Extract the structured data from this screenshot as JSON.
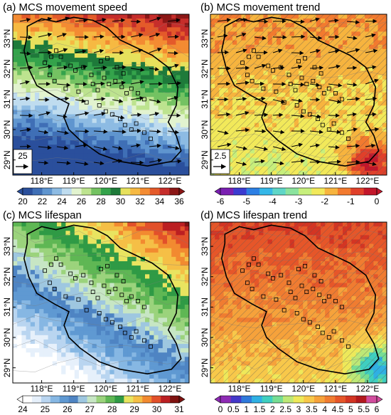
{
  "chart_data": [
    {
      "type": "heatmap",
      "title": "(a) MCS movement speed",
      "x_ticks": [
        "118°E",
        "119°E",
        "120°E",
        "121°E",
        "122°E"
      ],
      "y_ticks": [
        "33°N",
        "32°N",
        "31°N",
        "30°N",
        "29°N"
      ],
      "xlim": [
        117.1,
        122.6
      ],
      "ylim": [
        28.5,
        33.8
      ],
      "colorbar": {
        "labels": [
          "20",
          "22",
          "24",
          "26",
          "28",
          "30",
          "32",
          "34",
          "36"
        ],
        "range": [
          20,
          36
        ]
      },
      "vector_reference": "25",
      "field": {
        "base": 26,
        "lat_gradient": 3.0,
        "ref_lat": 31.0,
        "lon_gradient": 0.6,
        "ref_lon": 120.0
      },
      "vectors": "arrows pointing east",
      "hatching": false
    },
    {
      "type": "heatmap",
      "title": "(b) MCS movement trend",
      "x_ticks": [
        "118°E",
        "119°E",
        "120°E",
        "121°E",
        "122°E"
      ],
      "y_ticks": [
        "33°N",
        "32°N",
        "31°N",
        "30°N",
        "29°N"
      ],
      "xlim": [
        117.1,
        122.6
      ],
      "ylim": [
        28.5,
        33.8
      ],
      "colorbar": {
        "labels": [
          "-6",
          "-5",
          "-4",
          "-3",
          "-2",
          "-1",
          "0"
        ],
        "range": [
          -6,
          0
        ]
      },
      "vector_reference": "2.5",
      "field": {
        "base": -2.0,
        "lat_gradient": 0.2,
        "ref_lat": 31.0,
        "lon_gradient": 0.0,
        "ref_lon": 120.0,
        "hotspot": {
          "lon": 122.1,
          "lat": 28.9,
          "value": -0.3
        }
      },
      "vectors": "arrows pointing east",
      "hatching": true
    },
    {
      "type": "heatmap",
      "title": "(c) MCS lifespan",
      "x_ticks": [
        "118°E",
        "119°E",
        "120°E",
        "121°E",
        "122°E"
      ],
      "y_ticks": [
        "33°N",
        "32°N",
        "31°N",
        "30°N",
        "29°N"
      ],
      "xlim": [
        117.1,
        122.6
      ],
      "ylim": [
        28.5,
        33.8
      ],
      "colorbar": {
        "labels": [
          "24",
          "25",
          "26",
          "27",
          "28",
          "29",
          "30",
          "31"
        ],
        "range": [
          24,
          31
        ]
      },
      "field": {
        "base": 26.8,
        "lat_gradient": 0.9,
        "ref_lat": 31.0,
        "lon_gradient": 0.5,
        "ref_lon": 120.0
      },
      "hatching": false
    },
    {
      "type": "heatmap",
      "title": "(d) MCS lifespan trend",
      "x_ticks": [
        "118°E",
        "119°E",
        "120°E",
        "121°E",
        "122°E"
      ],
      "y_ticks": [
        "33°N",
        "32°N",
        "31°N",
        "30°N",
        "29°N"
      ],
      "xlim": [
        117.1,
        122.6
      ],
      "ylim": [
        28.5,
        33.8
      ],
      "colorbar": {
        "labels": [
          "0",
          "0.5",
          "1",
          "1.5",
          "2",
          "2.5",
          "3",
          "3.5",
          "4",
          "4.5",
          "5",
          "5.5",
          "6"
        ],
        "range": [
          0,
          6
        ]
      },
      "field": {
        "base": 4.0,
        "lat_gradient": 0.3,
        "ref_lat": 31.0,
        "lon_gradient": 0.0,
        "ref_lon": 120.0,
        "hotspot": {
          "lon": 122.3,
          "lat": 29.0,
          "value": 1.5
        }
      },
      "hatching": true
    }
  ],
  "region_outline": [
    [
      117.55,
      33.4
    ],
    [
      118.0,
      33.65
    ],
    [
      118.45,
      33.55
    ],
    [
      119.0,
      33.7
    ],
    [
      119.6,
      33.6
    ],
    [
      120.05,
      33.35
    ],
    [
      120.45,
      32.95
    ],
    [
      120.95,
      32.7
    ],
    [
      121.45,
      32.45
    ],
    [
      121.95,
      32.05
    ],
    [
      122.25,
      31.4
    ],
    [
      122.2,
      30.8
    ],
    [
      121.95,
      30.25
    ],
    [
      122.2,
      29.8
    ],
    [
      122.35,
      29.3
    ],
    [
      122.05,
      28.95
    ],
    [
      121.3,
      28.8
    ],
    [
      120.45,
      28.95
    ],
    [
      119.8,
      29.2
    ],
    [
      119.2,
      29.65
    ],
    [
      118.85,
      30.0
    ],
    [
      118.7,
      30.4
    ],
    [
      118.85,
      30.85
    ],
    [
      118.4,
      31.1
    ],
    [
      117.85,
      31.45
    ],
    [
      117.6,
      32.0
    ],
    [
      117.45,
      32.6
    ],
    [
      117.55,
      33.1
    ]
  ],
  "stations": [
    [
      118.1,
      32.2
    ],
    [
      118.3,
      32.4
    ],
    [
      118.45,
      32.6
    ],
    [
      118.6,
      32.4
    ],
    [
      118.25,
      31.8
    ],
    [
      118.4,
      31.6
    ],
    [
      118.9,
      32.1
    ],
    [
      119.05,
      31.95
    ],
    [
      119.3,
      32.05
    ],
    [
      119.55,
      31.8
    ],
    [
      119.6,
      31.5
    ],
    [
      119.75,
      31.3
    ],
    [
      119.95,
      31.7
    ],
    [
      120.1,
      31.5
    ],
    [
      120.3,
      31.6
    ],
    [
      120.5,
      31.4
    ],
    [
      120.65,
      31.2
    ],
    [
      120.8,
      31.35
    ],
    [
      121.0,
      31.2
    ],
    [
      121.2,
      31.0
    ],
    [
      119.8,
      30.8
    ],
    [
      120.0,
      30.6
    ],
    [
      120.2,
      30.5
    ],
    [
      120.45,
      30.35
    ],
    [
      120.6,
      30.15
    ],
    [
      120.8,
      30.0
    ],
    [
      120.95,
      30.2
    ],
    [
      121.2,
      29.9
    ],
    [
      121.4,
      29.7
    ],
    [
      119.4,
      30.9
    ],
    [
      119.15,
      31.25
    ],
    [
      120.35,
      32.05
    ],
    [
      120.55,
      31.85
    ],
    [
      119.85,
      32.25
    ],
    [
      120.05,
      32.35
    ],
    [
      118.75,
      31.35
    ]
  ]
}
